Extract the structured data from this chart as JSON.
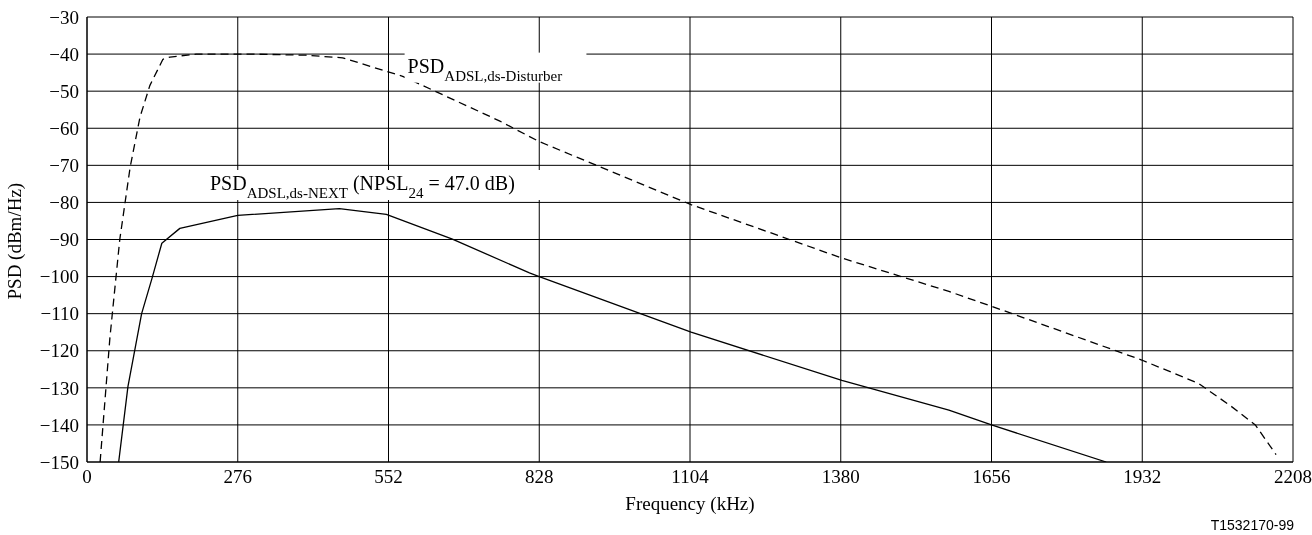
{
  "chart_data": {
    "type": "line",
    "xlabel": "Frequency (kHz)",
    "ylabel": "PSD (dBm/Hz)",
    "xlim": [
      0,
      2208
    ],
    "xticks": [
      0,
      276,
      552,
      828,
      1104,
      1380,
      1656,
      1932,
      2208
    ],
    "ylim": [
      -150,
      -30
    ],
    "yticks": [
      {
        "value": -150,
        "label": "−150"
      },
      {
        "value": -140,
        "label": "−140"
      },
      {
        "value": -130,
        "label": "−130"
      },
      {
        "value": -120,
        "label": "−120"
      },
      {
        "value": -110,
        "label": "−110"
      },
      {
        "value": -100,
        "label": "−100"
      },
      {
        "value": -90,
        "label": "−90"
      },
      {
        "value": -80,
        "label": "−80"
      },
      {
        "value": -70,
        "label": "−70"
      },
      {
        "value": -60,
        "label": "−60"
      },
      {
        "value": -50,
        "label": "−50"
      },
      {
        "value": -40,
        "label": "−40"
      },
      {
        "value": -30,
        "label": "−30"
      }
    ],
    "grid": true,
    "legend": false,
    "marker": "none",
    "series": [
      {
        "color": "#000000",
        "line_style": "dashed",
        "x": [
          24,
          42,
          60,
          79,
          97,
          115,
          139,
          152,
          200,
          300,
          400,
          468,
          578,
          755,
          828,
          1106,
          1382,
          1578,
          1656,
          1931,
          2035,
          2095,
          2139,
          2177
        ],
        "values": [
          -150,
          -116.4,
          -90,
          -70.5,
          -57,
          -48.5,
          -41.4,
          -40.8,
          -40,
          -40,
          -40.3,
          -41,
          -46,
          -58,
          -63.6,
          -80.6,
          -95,
          -104,
          -108,
          -122.5,
          -128.8,
          -135,
          -140,
          -148
        ]
      },
      {
        "color": "#000000",
        "line_style": "solid",
        "x": [
          58,
          75,
          100,
          119,
          137,
          170,
          276,
          462,
          548,
          669,
          810,
          828,
          1106,
          1382,
          1578,
          1656,
          1866
        ],
        "values": [
          -150,
          -129.6,
          -110,
          -100.5,
          -91,
          -87,
          -83.5,
          -81.7,
          -83.2,
          -89.9,
          -99,
          -100,
          -115,
          -128,
          -136,
          -140,
          -150
        ]
      }
    ],
    "annotations": [
      {
        "text": "PSD$_{ADSL,ds-Disturber}$",
        "x": 587,
        "y": -45
      },
      "PSD$_{ADSL,ds-NEXT}$ (NPSL$_{24}$ = 47.0 dB)",
      "T1532170-99"
    ]
  }
}
